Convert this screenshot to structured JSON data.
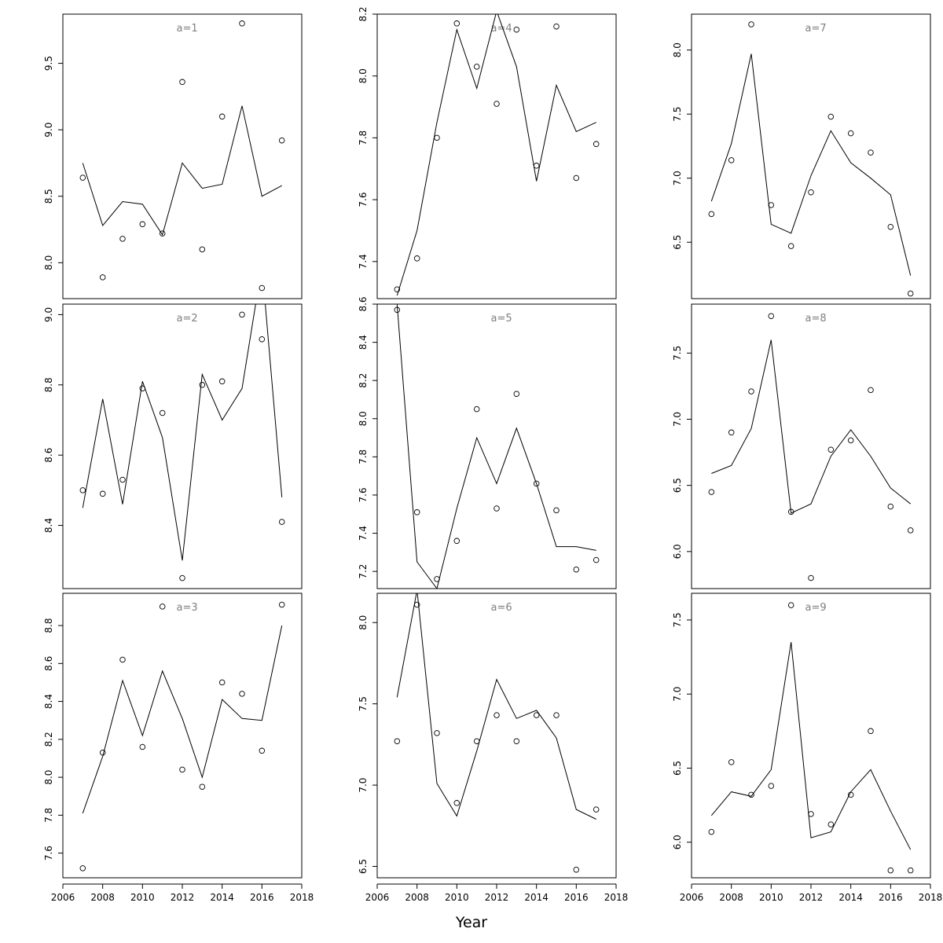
{
  "figure": {
    "xlabel": "Year"
  },
  "chart_data": [
    {
      "type": "scatter",
      "label": "a=1",
      "x": [
        2007,
        2008,
        2009,
        2010,
        2011,
        2012,
        2013,
        2014,
        2015,
        2016,
        2017
      ],
      "points": [
        8.64,
        7.89,
        8.18,
        8.29,
        8.22,
        9.36,
        8.1,
        9.1,
        9.8,
        7.81,
        8.92
      ],
      "line": [
        8.75,
        8.28,
        8.46,
        8.44,
        8.21,
        8.75,
        8.56,
        8.59,
        9.18,
        8.5,
        8.58
      ],
      "xlim": [
        2006,
        2018
      ],
      "ylim": [
        7.73,
        9.87
      ],
      "yticks": [
        8.0,
        8.5,
        9.0,
        9.5
      ],
      "xticks": [
        2006,
        2008,
        2010,
        2012,
        2014,
        2016,
        2018
      ]
    },
    {
      "type": "scatter",
      "label": "a=2",
      "x": [
        2007,
        2008,
        2009,
        2010,
        2011,
        2012,
        2013,
        2014,
        2015,
        2016,
        2017
      ],
      "points": [
        8.5,
        8.49,
        8.53,
        8.79,
        8.72,
        8.25,
        8.8,
        8.81,
        9.0,
        8.93,
        8.41
      ],
      "line": [
        8.45,
        8.76,
        8.46,
        8.81,
        8.65,
        8.3,
        8.83,
        8.7,
        8.79,
        9.14,
        8.48
      ],
      "xlim": [
        2006,
        2018
      ],
      "ylim": [
        8.22,
        9.03
      ],
      "yticks": [
        8.4,
        8.6,
        8.8,
        9.0
      ],
      "xticks": [
        2006,
        2008,
        2010,
        2012,
        2014,
        2016,
        2018
      ]
    },
    {
      "type": "scatter",
      "label": "a=3",
      "x": [
        2007,
        2008,
        2009,
        2010,
        2011,
        2012,
        2013,
        2014,
        2015,
        2016,
        2017
      ],
      "points": [
        7.52,
        8.13,
        8.62,
        8.16,
        8.9,
        8.04,
        7.95,
        8.5,
        8.44,
        8.14,
        8.91
      ],
      "line": [
        7.81,
        8.11,
        8.51,
        8.22,
        8.56,
        8.31,
        8.0,
        8.41,
        8.31,
        8.3,
        8.8
      ],
      "xlim": [
        2006,
        2018
      ],
      "ylim": [
        7.47,
        8.97
      ],
      "yticks": [
        7.6,
        7.8,
        8.0,
        8.2,
        8.4,
        8.6,
        8.8
      ],
      "xticks": [
        2006,
        2008,
        2010,
        2012,
        2014,
        2016,
        2018
      ]
    },
    {
      "type": "scatter",
      "label": "a=4",
      "x": [
        2007,
        2008,
        2009,
        2010,
        2011,
        2012,
        2013,
        2014,
        2015,
        2016,
        2017
      ],
      "points": [
        7.31,
        7.41,
        7.8,
        8.17,
        8.03,
        7.91,
        8.15,
        7.71,
        8.16,
        7.67,
        7.78
      ],
      "line": [
        7.29,
        7.5,
        7.85,
        8.15,
        7.96,
        8.21,
        8.03,
        7.66,
        7.97,
        7.82,
        7.85
      ],
      "xlim": [
        2006,
        2018
      ],
      "ylim": [
        7.28,
        8.2
      ],
      "yticks": [
        7.4,
        7.6,
        7.8,
        8.0,
        8.2
      ],
      "xticks": [
        2006,
        2008,
        2010,
        2012,
        2014,
        2016,
        2018
      ]
    },
    {
      "type": "scatter",
      "label": "a=5",
      "x": [
        2007,
        2008,
        2009,
        2010,
        2011,
        2012,
        2013,
        2014,
        2015,
        2016,
        2017
      ],
      "points": [
        8.57,
        7.51,
        7.16,
        7.36,
        8.05,
        7.53,
        8.13,
        7.66,
        7.52,
        7.21,
        7.26
      ],
      "line": [
        8.6,
        7.25,
        7.11,
        7.53,
        7.9,
        7.66,
        7.95,
        7.66,
        7.33,
        7.33,
        7.31
      ],
      "xlim": [
        2006,
        2018
      ],
      "ylim": [
        7.11,
        8.6
      ],
      "yticks": [
        7.2,
        7.4,
        7.6,
        7.8,
        8.0,
        8.2,
        8.4,
        8.6
      ],
      "xticks": [
        2006,
        2008,
        2010,
        2012,
        2014,
        2016,
        2018
      ]
    },
    {
      "type": "scatter",
      "label": "a=6",
      "x": [
        2007,
        2008,
        2009,
        2010,
        2011,
        2012,
        2013,
        2014,
        2015,
        2016,
        2017
      ],
      "points": [
        7.27,
        8.11,
        7.32,
        6.89,
        7.27,
        7.43,
        7.27,
        7.43,
        7.43,
        6.48,
        6.85
      ],
      "line": [
        7.54,
        8.2,
        7.01,
        6.81,
        7.21,
        7.65,
        7.41,
        7.46,
        7.29,
        6.85,
        6.79
      ],
      "xlim": [
        2006,
        2018
      ],
      "ylim": [
        6.43,
        8.18
      ],
      "yticks": [
        6.5,
        7.0,
        7.5,
        8.0
      ],
      "xticks": [
        2006,
        2008,
        2010,
        2012,
        2014,
        2016,
        2018
      ]
    },
    {
      "type": "scatter",
      "label": "a=7",
      "x": [
        2007,
        2008,
        2009,
        2010,
        2011,
        2012,
        2013,
        2014,
        2015,
        2016,
        2017
      ],
      "points": [
        6.72,
        7.14,
        8.2,
        6.79,
        6.47,
        6.89,
        7.48,
        7.35,
        7.2,
        6.62,
        6.1
      ],
      "line": [
        6.82,
        7.27,
        7.97,
        6.64,
        6.57,
        7.02,
        7.37,
        7.12,
        7.0,
        6.87,
        6.24
      ],
      "xlim": [
        2006,
        2018
      ],
      "ylim": [
        6.06,
        8.28
      ],
      "yticks": [
        6.5,
        7.0,
        7.5,
        8.0
      ],
      "xticks": [
        2006,
        2008,
        2010,
        2012,
        2014,
        2016,
        2018
      ]
    },
    {
      "type": "scatter",
      "label": "a=8",
      "x": [
        2007,
        2008,
        2009,
        2010,
        2011,
        2012,
        2013,
        2014,
        2015,
        2016,
        2017
      ],
      "points": [
        6.45,
        6.9,
        7.21,
        7.78,
        6.3,
        5.8,
        6.77,
        6.84,
        7.22,
        6.34,
        6.16
      ],
      "line": [
        6.59,
        6.65,
        6.93,
        7.6,
        6.29,
        6.36,
        6.72,
        6.92,
        6.72,
        6.48,
        6.36
      ],
      "xlim": [
        2006,
        2018
      ],
      "ylim": [
        5.72,
        7.87
      ],
      "yticks": [
        6.0,
        6.5,
        7.0,
        7.5
      ],
      "xticks": [
        2006,
        2008,
        2010,
        2012,
        2014,
        2016,
        2018
      ]
    },
    {
      "type": "scatter",
      "label": "a=9",
      "x": [
        2007,
        2008,
        2009,
        2010,
        2011,
        2012,
        2013,
        2014,
        2015,
        2016,
        2017
      ],
      "points": [
        6.07,
        6.54,
        6.32,
        6.38,
        7.6,
        6.19,
        6.12,
        6.32,
        6.75,
        5.81,
        5.81
      ],
      "line": [
        6.18,
        6.34,
        6.31,
        6.49,
        7.35,
        6.03,
        6.07,
        6.34,
        6.49,
        6.21,
        5.95
      ],
      "xlim": [
        2006,
        2018
      ],
      "ylim": [
        5.76,
        7.68
      ],
      "yticks": [
        6.0,
        6.5,
        7.0,
        7.5
      ],
      "xticks": [
        2006,
        2008,
        2010,
        2012,
        2014,
        2016,
        2018
      ]
    }
  ]
}
